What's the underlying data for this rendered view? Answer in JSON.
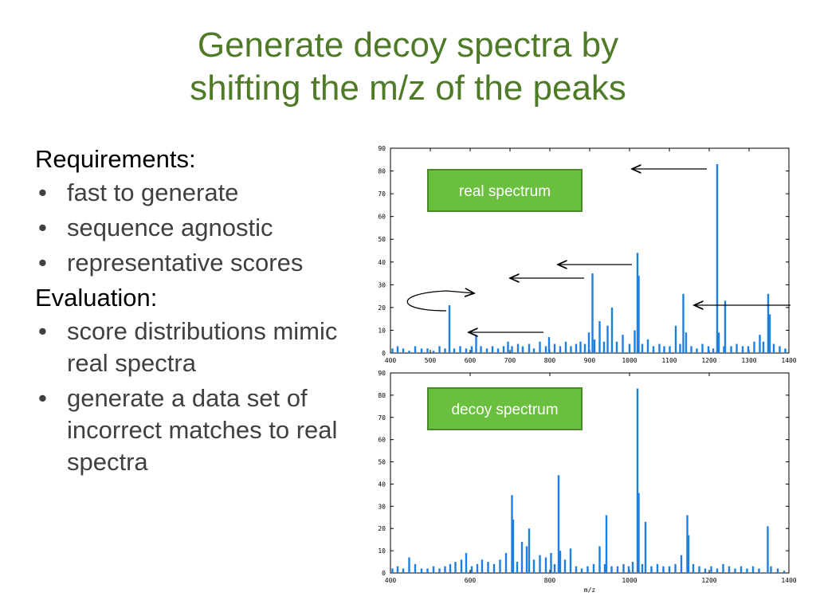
{
  "slide": {
    "title_line1": "Generate decoy spectra by",
    "title_line2": "shifting the m/z of the peaks"
  },
  "left": {
    "requirements_heading": "Requirements:",
    "requirements": [
      "fast to generate",
      "sequence agnostic",
      "representative scores"
    ],
    "evaluation_heading": "Evaluation:",
    "evaluation": [
      "score distributions mimic real spectra",
      "generate a data set of incorrect matches to real spectra"
    ]
  },
  "colors": {
    "title": "#4f7a28",
    "bar": "#1f7fe0",
    "label_bg": "#6abf3e",
    "label_border": "#4a8a2a",
    "label_text": "#ffffff"
  },
  "chart_data": [
    {
      "type": "bar",
      "label": "real spectrum",
      "xlim": [
        400,
        1400
      ],
      "ylim": [
        0,
        90
      ],
      "x_ticks": [
        400,
        500,
        600,
        700,
        800,
        900,
        1000,
        1100,
        1200,
        1300,
        1400
      ],
      "y_ticks": [
        0,
        10,
        20,
        30,
        40,
        50,
        60,
        70,
        80,
        90
      ],
      "xlabel": "",
      "peaks": [
        {
          "x": 405,
          "y": 2
        },
        {
          "x": 418,
          "y": 3
        },
        {
          "x": 432,
          "y": 2
        },
        {
          "x": 447,
          "y": 1
        },
        {
          "x": 462,
          "y": 3
        },
        {
          "x": 478,
          "y": 2
        },
        {
          "x": 493,
          "y": 2
        },
        {
          "x": 508,
          "y": 1
        },
        {
          "x": 523,
          "y": 3
        },
        {
          "x": 537,
          "y": 2
        },
        {
          "x": 548,
          "y": 21
        },
        {
          "x": 560,
          "y": 2
        },
        {
          "x": 575,
          "y": 3
        },
        {
          "x": 590,
          "y": 2
        },
        {
          "x": 604,
          "y": 3
        },
        {
          "x": 615,
          "y": 8
        },
        {
          "x": 627,
          "y": 3
        },
        {
          "x": 642,
          "y": 2
        },
        {
          "x": 656,
          "y": 3
        },
        {
          "x": 670,
          "y": 2
        },
        {
          "x": 684,
          "y": 3
        },
        {
          "x": 695,
          "y": 5
        },
        {
          "x": 705,
          "y": 3
        },
        {
          "x": 720,
          "y": 4
        },
        {
          "x": 732,
          "y": 3
        },
        {
          "x": 748,
          "y": 4
        },
        {
          "x": 760,
          "y": 2
        },
        {
          "x": 775,
          "y": 5
        },
        {
          "x": 790,
          "y": 3
        },
        {
          "x": 798,
          "y": 7
        },
        {
          "x": 812,
          "y": 4
        },
        {
          "x": 826,
          "y": 3
        },
        {
          "x": 840,
          "y": 5
        },
        {
          "x": 853,
          "y": 3
        },
        {
          "x": 866,
          "y": 4
        },
        {
          "x": 877,
          "y": 5
        },
        {
          "x": 888,
          "y": 4
        },
        {
          "x": 898,
          "y": 9
        },
        {
          "x": 907,
          "y": 35
        },
        {
          "x": 912,
          "y": 6
        },
        {
          "x": 925,
          "y": 14
        },
        {
          "x": 936,
          "y": 5
        },
        {
          "x": 945,
          "y": 12
        },
        {
          "x": 956,
          "y": 20
        },
        {
          "x": 968,
          "y": 5
        },
        {
          "x": 983,
          "y": 8
        },
        {
          "x": 1000,
          "y": 4
        },
        {
          "x": 1013,
          "y": 10
        },
        {
          "x": 1020,
          "y": 44
        },
        {
          "x": 1023,
          "y": 34
        },
        {
          "x": 1032,
          "y": 4
        },
        {
          "x": 1046,
          "y": 6
        },
        {
          "x": 1060,
          "y": 3
        },
        {
          "x": 1075,
          "y": 4
        },
        {
          "x": 1087,
          "y": 3
        },
        {
          "x": 1101,
          "y": 3
        },
        {
          "x": 1116,
          "y": 12
        },
        {
          "x": 1127,
          "y": 4
        },
        {
          "x": 1135,
          "y": 26
        },
        {
          "x": 1142,
          "y": 9
        },
        {
          "x": 1155,
          "y": 3
        },
        {
          "x": 1169,
          "y": 2
        },
        {
          "x": 1183,
          "y": 4
        },
        {
          "x": 1198,
          "y": 3
        },
        {
          "x": 1210,
          "y": 2
        },
        {
          "x": 1220,
          "y": 83
        },
        {
          "x": 1224,
          "y": 9
        },
        {
          "x": 1237,
          "y": 3
        },
        {
          "x": 1240,
          "y": 23
        },
        {
          "x": 1255,
          "y": 3
        },
        {
          "x": 1269,
          "y": 4
        },
        {
          "x": 1284,
          "y": 3
        },
        {
          "x": 1298,
          "y": 3
        },
        {
          "x": 1313,
          "y": 5
        },
        {
          "x": 1327,
          "y": 8
        },
        {
          "x": 1336,
          "y": 5
        },
        {
          "x": 1348,
          "y": 26
        },
        {
          "x": 1352,
          "y": 17
        },
        {
          "x": 1362,
          "y": 4
        },
        {
          "x": 1377,
          "y": 3
        },
        {
          "x": 1391,
          "y": 2
        }
      ]
    },
    {
      "type": "bar",
      "label": "decoy spectrum",
      "xlim": [
        400,
        1400
      ],
      "ylim": [
        0,
        90
      ],
      "x_ticks": [
        400,
        600,
        800,
        1000,
        1200,
        1400
      ],
      "y_ticks": [
        0,
        10,
        20,
        30,
        40,
        50,
        60,
        70,
        80,
        90
      ],
      "xlabel": "m/z",
      "peaks": [
        {
          "x": 405,
          "y": 2
        },
        {
          "x": 418,
          "y": 3
        },
        {
          "x": 432,
          "y": 2
        },
        {
          "x": 447,
          "y": 7
        },
        {
          "x": 462,
          "y": 4
        },
        {
          "x": 478,
          "y": 2
        },
        {
          "x": 493,
          "y": 2
        },
        {
          "x": 508,
          "y": 3
        },
        {
          "x": 523,
          "y": 2
        },
        {
          "x": 537,
          "y": 3
        },
        {
          "x": 550,
          "y": 4
        },
        {
          "x": 563,
          "y": 5
        },
        {
          "x": 578,
          "y": 6
        },
        {
          "x": 590,
          "y": 9
        },
        {
          "x": 604,
          "y": 3
        },
        {
          "x": 618,
          "y": 4
        },
        {
          "x": 630,
          "y": 6
        },
        {
          "x": 645,
          "y": 5
        },
        {
          "x": 660,
          "y": 4
        },
        {
          "x": 675,
          "y": 6
        },
        {
          "x": 690,
          "y": 9
        },
        {
          "x": 705,
          "y": 35
        },
        {
          "x": 708,
          "y": 24
        },
        {
          "x": 718,
          "y": 5
        },
        {
          "x": 730,
          "y": 14
        },
        {
          "x": 742,
          "y": 12
        },
        {
          "x": 748,
          "y": 20
        },
        {
          "x": 760,
          "y": 6
        },
        {
          "x": 775,
          "y": 8
        },
        {
          "x": 790,
          "y": 7
        },
        {
          "x": 803,
          "y": 9
        },
        {
          "x": 812,
          "y": 4
        },
        {
          "x": 822,
          "y": 44
        },
        {
          "x": 826,
          "y": 10
        },
        {
          "x": 838,
          "y": 6
        },
        {
          "x": 852,
          "y": 11
        },
        {
          "x": 866,
          "y": 3
        },
        {
          "x": 880,
          "y": 2
        },
        {
          "x": 895,
          "y": 3
        },
        {
          "x": 910,
          "y": 4
        },
        {
          "x": 925,
          "y": 12
        },
        {
          "x": 938,
          "y": 4
        },
        {
          "x": 942,
          "y": 26
        },
        {
          "x": 955,
          "y": 3
        },
        {
          "x": 970,
          "y": 3
        },
        {
          "x": 985,
          "y": 4
        },
        {
          "x": 998,
          "y": 3
        },
        {
          "x": 1008,
          "y": 5
        },
        {
          "x": 1020,
          "y": 83
        },
        {
          "x": 1023,
          "y": 36
        },
        {
          "x": 1032,
          "y": 4
        },
        {
          "x": 1040,
          "y": 23
        },
        {
          "x": 1055,
          "y": 3
        },
        {
          "x": 1070,
          "y": 4
        },
        {
          "x": 1085,
          "y": 3
        },
        {
          "x": 1100,
          "y": 3
        },
        {
          "x": 1115,
          "y": 4
        },
        {
          "x": 1130,
          "y": 8
        },
        {
          "x": 1145,
          "y": 26
        },
        {
          "x": 1148,
          "y": 17
        },
        {
          "x": 1160,
          "y": 4
        },
        {
          "x": 1175,
          "y": 3
        },
        {
          "x": 1190,
          "y": 2
        },
        {
          "x": 1205,
          "y": 3
        },
        {
          "x": 1220,
          "y": 2
        },
        {
          "x": 1235,
          "y": 4
        },
        {
          "x": 1250,
          "y": 3
        },
        {
          "x": 1265,
          "y": 2
        },
        {
          "x": 1280,
          "y": 3
        },
        {
          "x": 1295,
          "y": 2
        },
        {
          "x": 1310,
          "y": 3
        },
        {
          "x": 1325,
          "y": 2
        },
        {
          "x": 1347,
          "y": 21
        },
        {
          "x": 1355,
          "y": 3
        },
        {
          "x": 1372,
          "y": 2
        },
        {
          "x": 1388,
          "y": 1
        }
      ]
    }
  ]
}
